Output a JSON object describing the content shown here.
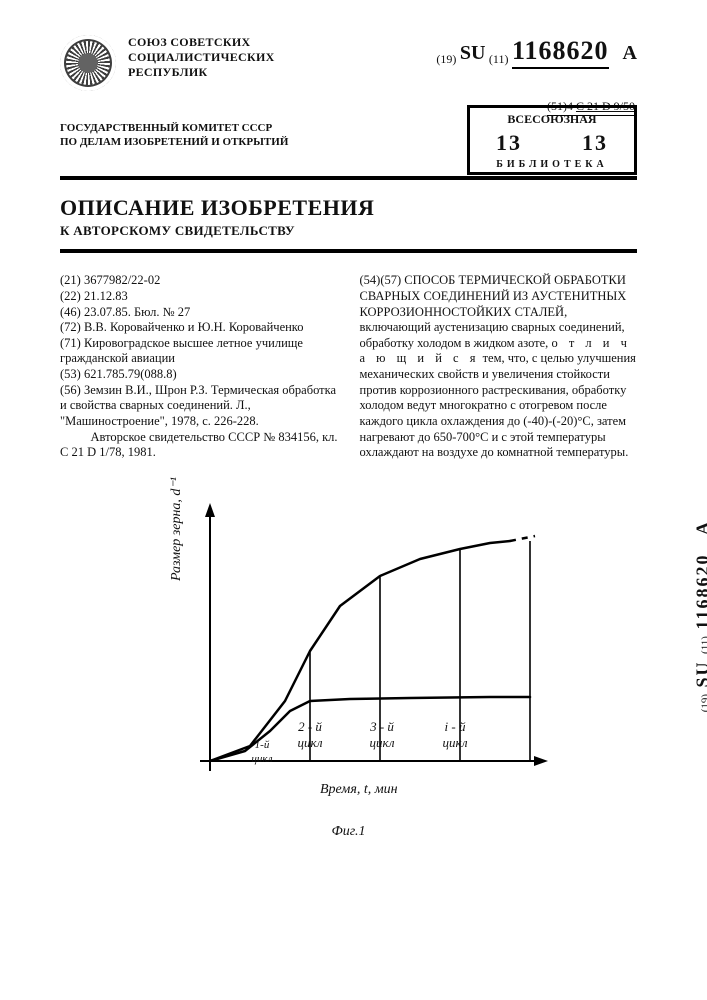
{
  "issuer": "СОЮЗ СОВЕТСКИХ\nСОЦИАЛИСТИЧЕСКИХ\nРЕСПУБЛИК",
  "pub": {
    "prefix19": "(19)",
    "cc": "SU",
    "prefix11": "(11)",
    "number": "1168620",
    "kind": "A"
  },
  "classification": {
    "prefix": "(51)4",
    "code": "C 21 D 9/50"
  },
  "committee": "ГОСУДАРСТВЕННЫЙ КОМИТЕТ СССР\nПО ДЕЛАМ ИЗОБРЕТЕНИЙ И ОТКРЫТИЙ",
  "stamp": {
    "line1": "ВСЕСОЮЗНАЯ",
    "line2": "13        13",
    "line3": "БИБЛИОТЕКА"
  },
  "title": {
    "main": "ОПИСАНИЕ ИЗОБРЕТЕНИЯ",
    "sub": "К АВТОРСКОМУ СВИДЕТЕЛЬСТВУ"
  },
  "left_column": [
    "(21) 3677982/22-02",
    "(22) 21.12.83",
    "(46) 23.07.85. Бюл. № 27",
    "(72) В.В. Коровайченко и Ю.Н. Коровайченко",
    "(71) Кировоградское высшее летное училище гражданской авиации",
    "(53) 621.785.79(088.8)",
    "(56) Земзин В.И., Шрон Р.З. Термическая обработка и свойства сварных соединений. Л., \"Машиностроение\", 1978, с. 226-228.",
    "    Авторское свидетельство СССР № 834156, кл. C 21 D 1/78, 1981."
  ],
  "right_column": {
    "head": "(54)(57) СПОСОБ ТЕРМИЧЕСКОЙ ОБРАБОТКИ СВАРНЫХ СОЕДИНЕНИЙ ИЗ АУСТЕНИТНЫХ КОРРОЗИОННОСТОЙКИХ СТАЛЕЙ, включающий аустенизацию сварных соединений, обработку холодом в жидком азоте,",
    "distinct": "о т л и ч а ю щ и й с я",
    "tail": " тем, что, с целью улучшения механических свойств и увеличения стойкости против коррозионного растрескивания, обработку холодом ведут многократно с отогревом после каждого цикла охлаждения до (-40)-(-20)°С, затем нагревают до 650-700°С и с этой температуры охлаждают на воздухе до комнатной температуры."
  },
  "figure": {
    "type": "line",
    "caption": "Фиг.1",
    "y_label": "Размер зерна, d⁻¹",
    "x_label": "Время, t, мин",
    "series": [
      {
        "name": "upper",
        "color": "#000000",
        "line_width": 2.5,
        "points": [
          [
            20,
            260
          ],
          [
            60,
            245
          ],
          [
            95,
            200
          ],
          [
            120,
            150
          ],
          [
            150,
            105
          ],
          [
            190,
            75
          ],
          [
            230,
            58
          ],
          [
            270,
            48
          ],
          [
            300,
            42
          ],
          [
            320,
            40
          ]
        ],
        "dash_tail": [
          [
            320,
            40
          ],
          [
            345,
            35
          ]
        ]
      },
      {
        "name": "lower",
        "color": "#000000",
        "line_width": 2.5,
        "points": [
          [
            20,
            260
          ],
          [
            55,
            250
          ],
          [
            80,
            230
          ],
          [
            100,
            210
          ],
          [
            120,
            200
          ],
          [
            160,
            198
          ],
          [
            220,
            197
          ],
          [
            300,
            196
          ],
          [
            340,
            196
          ]
        ]
      }
    ],
    "verticals_x": [
      120,
      190,
      270,
      340
    ],
    "y_baseline": 260,
    "axis_color": "#000000",
    "axis_width": 2,
    "cycle_labels": [
      "1-й\nцикл",
      "2 - й\nцикл",
      "3 - й\nцикл",
      "i - й\nцикл"
    ]
  },
  "spine": "SU ·· 1168620  A"
}
